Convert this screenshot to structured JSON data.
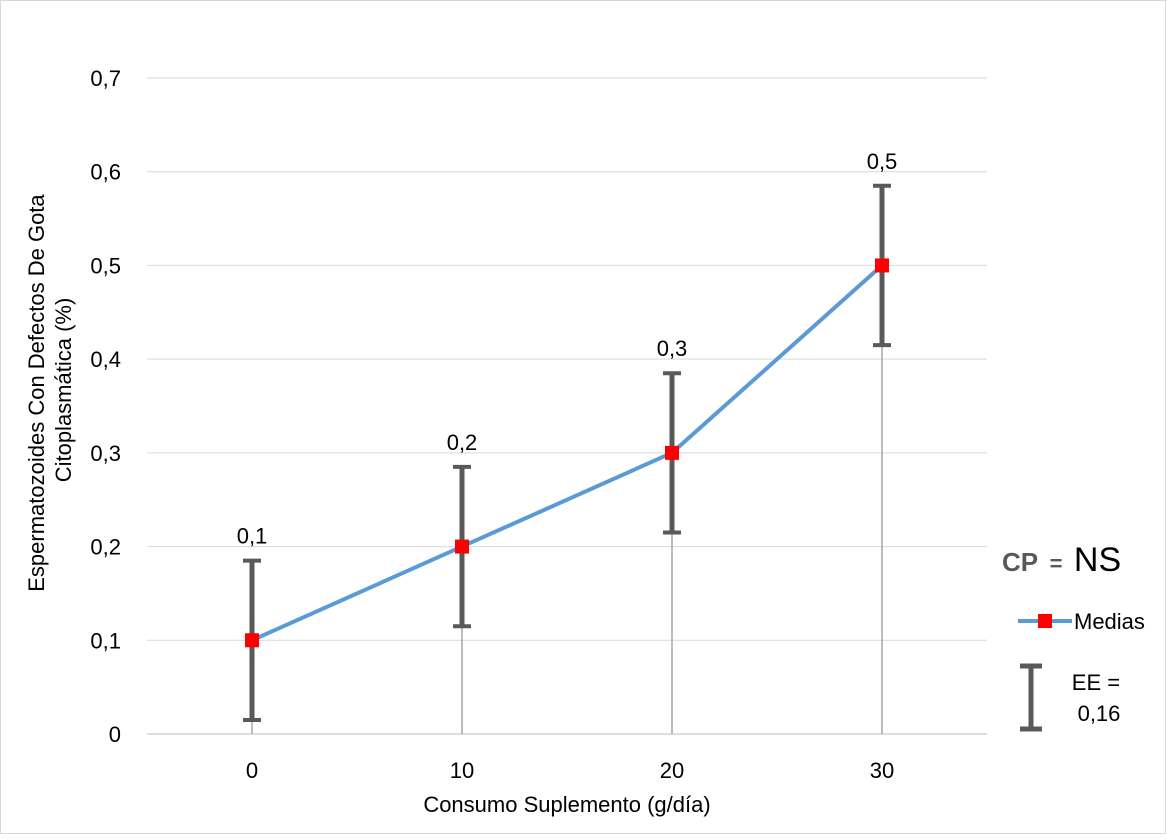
{
  "chart_data": {
    "type": "line",
    "title": "",
    "xlabel": "Consumo Suplemento (g/día)",
    "ylabel_lines": [
      "Espermatozoides Con Defectos De Gota",
      "Citoplasmática (%)"
    ],
    "categories": [
      "0",
      "10",
      "20",
      "30"
    ],
    "ylim": [
      0,
      0.7
    ],
    "yticks": [
      "0",
      "0,1",
      "0,2",
      "0,3",
      "0,4",
      "0,5",
      "0,6",
      "0,7"
    ],
    "grid": true,
    "series": [
      {
        "name": "Medias",
        "values": [
          0.1,
          0.2,
          0.3,
          0.5
        ],
        "data_labels": [
          "0,1",
          "0,2",
          "0,3",
          "0,5"
        ],
        "error": 0.085,
        "line_color": "#5b9bd5",
        "marker_color": "#ff0000"
      }
    ],
    "error_bar_color": "#595959",
    "annotation": {
      "cp_label": "CP",
      "cp_equals": "=",
      "cp_value": "NS"
    },
    "legend": {
      "position": "right",
      "items": [
        {
          "type": "line-marker",
          "label": "Medias"
        },
        {
          "type": "error-bar",
          "label_lines": [
            "EE =",
            "0,16"
          ]
        }
      ]
    }
  }
}
